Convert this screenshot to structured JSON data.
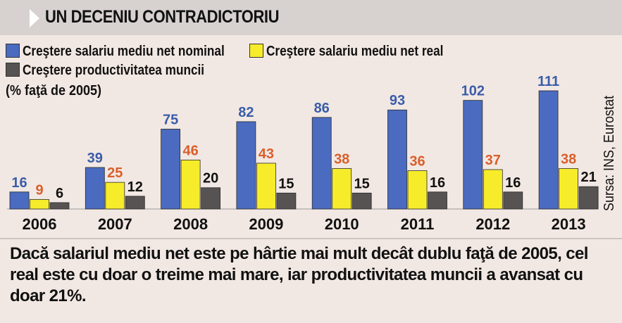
{
  "header": {
    "title": "UN DECENIU CONTRADICTORIU"
  },
  "legend": [
    {
      "label": "Creştere salariu mediu net nominal",
      "color": "#4a6bbf"
    },
    {
      "label": "Creştere salariu mediu net real",
      "color": "#f7ec2a"
    },
    {
      "label": "Creştere productivitatea muncii",
      "color": "#575352"
    }
  ],
  "unit_note": "(% faţă de 2005)",
  "source": "Sursa: INS, Eurostat",
  "caption": "Dacă salariul mediu net este pe hârtie mai mult decât dublu faţă de 2005, cel real este cu doar o treime mai mare, iar productivitatea muncii a avansat cu doar 21%.",
  "chart_data": {
    "type": "bar",
    "title": "UN DECENIU CONTRADICTORIU",
    "ylabel": "(% faţă de 2005)",
    "categories": [
      "2006",
      "2007",
      "2008",
      "2009",
      "2010",
      "2011",
      "2012",
      "2013"
    ],
    "series": [
      {
        "name": "Creştere salariu mediu net nominal",
        "color": "#4a6bbf",
        "label_color": "#3a5da8",
        "values": [
          16,
          39,
          75,
          82,
          86,
          93,
          102,
          111
        ]
      },
      {
        "name": "Creştere salariu mediu net real",
        "color": "#f7ec2a",
        "label_color": "#d95f2b",
        "values": [
          9,
          25,
          46,
          43,
          38,
          36,
          37,
          38
        ]
      },
      {
        "name": "Creştere productivitatea muncii",
        "color": "#575352",
        "label_color": "#111111",
        "values": [
          6,
          12,
          20,
          15,
          15,
          16,
          16,
          21
        ]
      }
    ],
    "ylim": [
      0,
      111
    ],
    "grid": false,
    "legend_position": "top-left"
  }
}
